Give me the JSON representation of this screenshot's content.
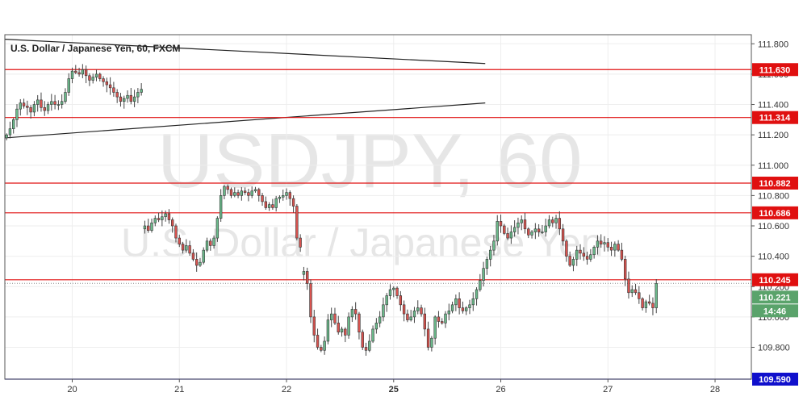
{
  "chart_data": {
    "type": "candlestick",
    "title": "U.S. Dollar / Japanese Yen, 60, FXCM",
    "watermark_symbol": "USDJPY, 60",
    "watermark_name": "U.S. Dollar / Japanese Yen",
    "ylim": [
      109.59,
      111.86
    ],
    "y_ticks": [
      "111.800",
      "111.600",
      "111.400",
      "111.200",
      "111.000",
      "110.800",
      "110.600",
      "110.400",
      "110.200",
      "110.000",
      "109.800"
    ],
    "x_ticks": [
      {
        "label": "20",
        "bar": 19,
        "bold": false
      },
      {
        "label": "21",
        "bar": 50,
        "bold": false
      },
      {
        "label": "22",
        "bar": 81,
        "bold": false
      },
      {
        "label": "25",
        "bar": 112,
        "bold": true
      },
      {
        "label": "26",
        "bar": 143,
        "bold": false
      },
      {
        "label": "27",
        "bar": 174,
        "bold": false
      },
      {
        "label": "28",
        "bar": 205,
        "bold": false
      }
    ],
    "bars_total": 216,
    "level_lines": [
      {
        "value": 111.63,
        "label": "111.630",
        "color": "#e01010"
      },
      {
        "value": 111.314,
        "label": "111.314",
        "color": "#e01010"
      },
      {
        "value": 110.882,
        "label": "110.882",
        "color": "#e01010"
      },
      {
        "value": 110.686,
        "label": "110.686",
        "color": "#e01010"
      },
      {
        "value": 110.245,
        "label": "110.245",
        "color": "#e01010"
      },
      {
        "value": 109.59,
        "label": "109.590",
        "color": "#1010cc"
      }
    ],
    "trend_lines": [
      {
        "x1": 0,
        "y1": 111.83,
        "x2": 139,
        "y2": 111.67
      },
      {
        "x1": 0,
        "y1": 111.18,
        "x2": 139,
        "y2": 111.41
      }
    ],
    "last_price": {
      "value": 110.221,
      "label": "110.221",
      "countdown": "14:46",
      "color": "#5aa36b"
    },
    "colors": {
      "up": "#6ab98a",
      "down": "#d9534f",
      "wick": "#444444",
      "grid": "#eeeeee"
    },
    "series": [
      {
        "start": 0,
        "values": [
          111.2,
          111.24,
          111.3,
          111.37,
          111.41,
          111.39,
          111.38,
          111.35,
          111.4,
          111.43,
          111.38,
          111.36,
          111.4,
          111.42,
          111.4,
          111.4,
          111.42,
          111.48,
          111.57,
          111.62,
          111.61,
          111.6,
          111.63,
          111.59,
          111.56,
          111.58,
          111.6,
          111.57,
          111.55,
          111.53,
          111.51,
          111.48,
          111.45,
          111.42,
          111.44,
          111.46,
          111.42,
          111.45,
          111.48,
          111.5
        ]
      },
      {
        "start": 40,
        "values": [
          110.6,
          110.57,
          110.62,
          110.65,
          110.64,
          110.66,
          110.68,
          110.64,
          110.6,
          110.52,
          110.48,
          110.44,
          110.47,
          110.42,
          110.38,
          110.34,
          110.36,
          110.44,
          110.5,
          110.47,
          110.52,
          110.65,
          110.8,
          110.86,
          110.84,
          110.8,
          110.82,
          110.8,
          110.83,
          110.82,
          110.8,
          110.83,
          110.84,
          110.8,
          110.76,
          110.72,
          110.74,
          110.72,
          110.78,
          110.79,
          110.8,
          110.82,
          110.78,
          110.73,
          110.52,
          110.46
        ]
      },
      {
        "start": 86,
        "values": [
          110.3,
          110.22,
          110.0,
          109.88,
          109.8,
          109.78,
          109.84,
          109.98,
          110.02,
          109.96,
          109.9,
          109.92,
          109.88,
          110.0,
          110.05,
          110.02,
          109.9,
          109.8,
          109.78,
          109.84,
          109.92,
          109.96,
          110.0,
          110.08,
          110.14,
          110.18,
          110.19,
          110.14,
          110.08,
          110.02,
          109.98,
          110.0,
          110.04,
          110.06,
          110.02,
          109.92,
          109.8,
          109.86,
          110.0,
          109.97,
          109.96,
          110.02,
          110.04,
          110.08,
          110.12,
          110.06,
          110.04,
          110.06,
          110.08,
          110.12,
          110.18,
          110.24,
          110.32,
          110.38,
          110.44,
          110.5,
          110.63,
          110.6,
          110.55,
          110.52,
          110.56,
          110.59,
          110.62,
          110.64,
          110.58,
          110.54,
          110.56,
          110.58,
          110.56,
          110.56,
          110.6,
          110.64,
          110.62,
          110.65,
          110.58,
          110.5,
          110.4,
          110.34,
          110.38,
          110.44,
          110.42,
          110.4,
          110.38,
          110.41,
          110.46,
          110.5,
          110.48,
          110.49,
          110.46,
          110.44,
          110.48,
          110.44,
          110.38,
          110.25,
          110.16,
          110.18,
          110.16,
          110.12,
          110.06,
          110.1,
          110.09,
          110.06,
          110.221
        ]
      }
    ]
  }
}
